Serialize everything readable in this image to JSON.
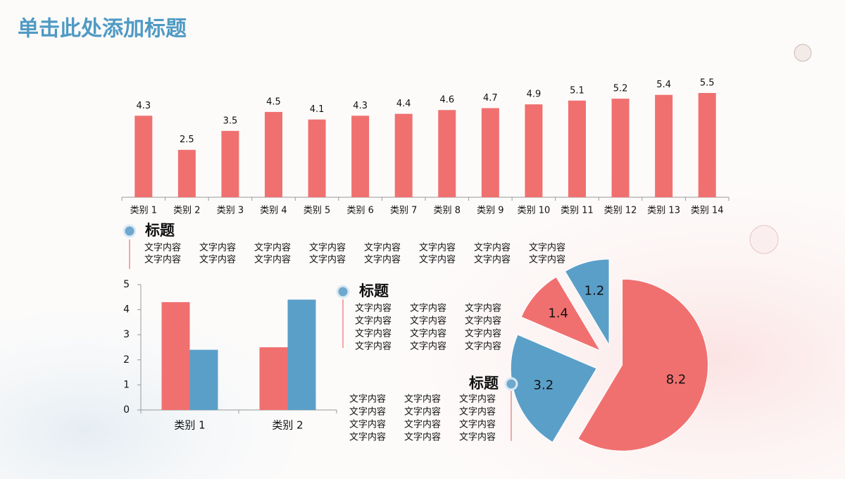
{
  "title": "单击此处添加标题",
  "chart_data": [
    {
      "type": "bar",
      "categories": [
        "类别 1",
        "类别 2",
        "类别 3",
        "类别 4",
        "类别 5",
        "类别 6",
        "类别 7",
        "类别 8",
        "类别 9",
        "类别 10",
        "类别 11",
        "类别 12",
        "类别 13",
        "类别 14"
      ],
      "values": [
        4.3,
        2.5,
        3.5,
        4.5,
        4.1,
        4.3,
        4.4,
        4.6,
        4.7,
        4.9,
        5.1,
        5.2,
        5.4,
        5.5
      ],
      "color": "#f07070",
      "ylim": [
        0,
        5.5
      ]
    },
    {
      "type": "grouped-bar",
      "categories": [
        "类别 1",
        "类别 2"
      ],
      "series": [
        {
          "color": "#f07070",
          "values": [
            4.3,
            2.5
          ]
        },
        {
          "color": "#5a9fc8",
          "values": [
            2.4,
            4.4
          ]
        }
      ],
      "ylim": [
        0,
        5
      ],
      "yticks": [
        0,
        1,
        2,
        3,
        4,
        5
      ]
    },
    {
      "type": "pie",
      "values": [
        8.2,
        3.2,
        1.4,
        1.2
      ],
      "colors": [
        "#f07070",
        "#5a9fc8",
        "#f07070",
        "#5a9fc8"
      ]
    }
  ],
  "text_blocks": [
    {
      "heading": "标题",
      "rows": [
        [
          "文字内容",
          "文字内容",
          "文字内容",
          "文字内容",
          "文字内容",
          "文字内容",
          "文字内容",
          "文字内容"
        ],
        [
          "文字内容",
          "文字内容",
          "文字内容",
          "文字内容",
          "文字内容",
          "文字内容",
          "文字内容",
          "文字内容"
        ]
      ]
    },
    {
      "heading": "标题",
      "rows": [
        [
          "文字内容",
          "文字内容",
          "文字内容"
        ],
        [
          "文字内容",
          "文字内容",
          "文字内容"
        ],
        [
          "文字内容",
          "文字内容",
          "文字内容"
        ],
        [
          "文字内容",
          "文字内容",
          "文字内容"
        ]
      ]
    },
    {
      "heading": "标题",
      "rows": [
        [
          "文字内容",
          "文字内容",
          "文字内容"
        ],
        [
          "文字内容",
          "文字内容",
          "文字内容"
        ],
        [
          "文字内容",
          "文字内容",
          "文字内容"
        ],
        [
          "文字内容",
          "文字内容",
          "文字内容"
        ]
      ]
    }
  ]
}
